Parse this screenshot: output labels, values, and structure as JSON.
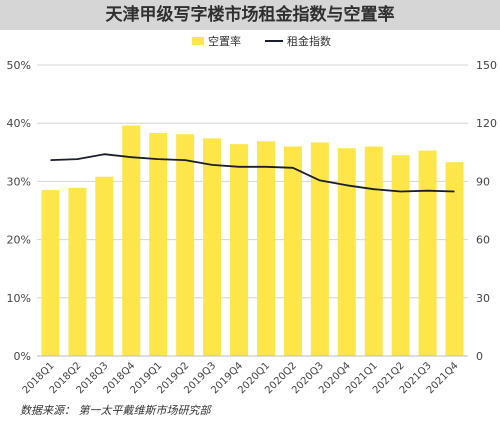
{
  "chart_data": {
    "type": "bar+line",
    "title": "天津甲级写字楼市场租金指数与空置率",
    "categories": [
      "2018Q1",
      "2018Q2",
      "2018Q3",
      "2018Q4",
      "2019Q1",
      "2019Q2",
      "2019Q3",
      "2019Q4",
      "2020Q1",
      "2020Q2",
      "2020Q3",
      "2020Q4",
      "2021Q1",
      "2021Q2",
      "2021Q3",
      "2021Q4"
    ],
    "series": [
      {
        "name": "空置率",
        "type": "bar",
        "axis": "left",
        "color": "#fce64a",
        "values": [
          28.5,
          28.9,
          30.8,
          39.6,
          38.3,
          38.1,
          37.4,
          36.4,
          36.9,
          36.0,
          36.7,
          35.7,
          36.0,
          34.5,
          35.3,
          33.3
        ]
      },
      {
        "name": "租金指数",
        "type": "line",
        "axis": "right",
        "color": "#1a1d2b",
        "values": [
          101,
          101.5,
          104,
          102.5,
          101.5,
          101,
          98.5,
          97.5,
          97.5,
          97,
          90.5,
          88,
          86,
          84.8,
          85.2,
          84.8
        ]
      }
    ],
    "left_axis": {
      "min": 0,
      "max": 50,
      "ticks": [
        "0%",
        "10%",
        "20%",
        "30%",
        "40%",
        "50%"
      ]
    },
    "right_axis": {
      "min": 0,
      "max": 150,
      "ticks": [
        "0",
        "30",
        "60",
        "90",
        "120",
        "150"
      ]
    },
    "legend_position": "top-center",
    "grid": true
  },
  "source": "数据来源：  第一太平戴维斯市场研究部"
}
